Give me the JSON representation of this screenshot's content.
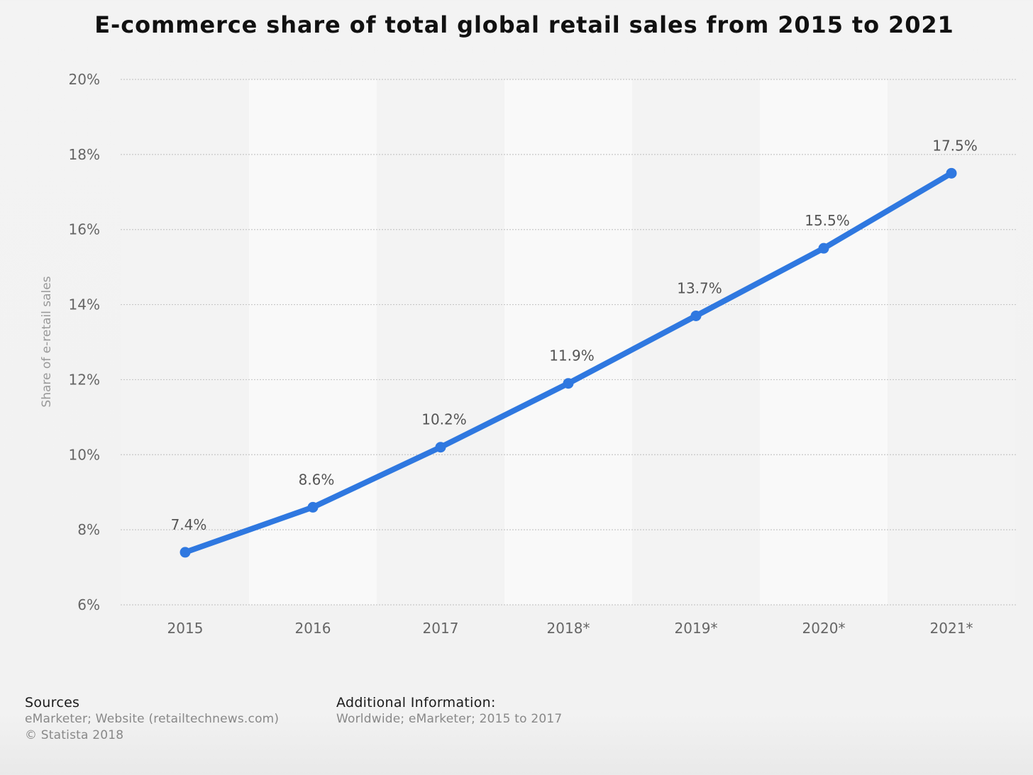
{
  "chart_data": {
    "type": "line",
    "title": "E-commerce share of total global retail sales from 2015 to 2021",
    "xlabel": "",
    "ylabel": "Share of e-retail sales",
    "categories": [
      "2015",
      "2016",
      "2017",
      "2018*",
      "2019*",
      "2020*",
      "2021*"
    ],
    "series": [
      {
        "values": [
          7.4,
          8.6,
          10.2,
          11.9,
          13.7,
          15.5,
          17.5
        ],
        "data_labels": [
          "7.4%",
          "8.6%",
          "10.2%",
          "11.9%",
          "13.7%",
          "15.5%",
          "17.5%"
        ]
      }
    ],
    "ylim": [
      6,
      20
    ],
    "yticks": [
      6,
      8,
      10,
      12,
      14,
      16,
      18,
      20
    ],
    "ytick_labels": [
      "6%",
      "8%",
      "10%",
      "12%",
      "14%",
      "16%",
      "18%",
      "20%"
    ],
    "grid": true,
    "legend": "none",
    "colors": {
      "line": "#2f78e0",
      "grid": "#c8c8c8",
      "tick_text": "#666666",
      "data_label_text": "#555555",
      "band_light": "#f9f9f9",
      "band_dark": "#f3f3f3"
    }
  },
  "footer": {
    "sources_heading": "Sources",
    "sources_text": "eMarketer; Website (retailtechnews.com)",
    "copyright": "© Statista 2018",
    "additional_heading": "Additional Information:",
    "additional_text": "Worldwide; eMarketer; 2015 to 2017"
  }
}
